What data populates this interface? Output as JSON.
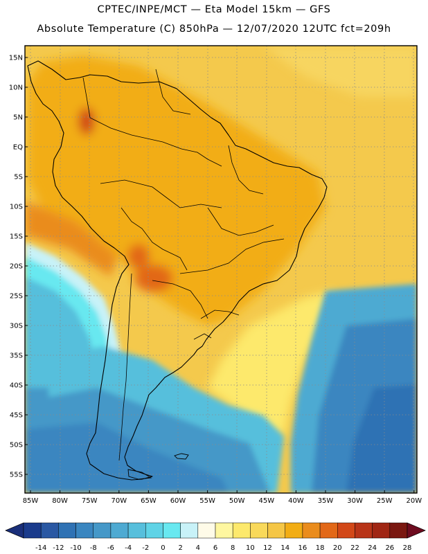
{
  "header": {
    "title_line1": "CPTEC/INPE/MCT —  Eta Model 15km — GFS",
    "title_line2": "Absolute Temperature (C) 850hPa — 12/07/2020 12UTC fct=209h"
  },
  "map": {
    "lat_labels": [
      "15N",
      "10N",
      "5N",
      "EQ",
      "5S",
      "10S",
      "15S",
      "20S",
      "25S",
      "30S",
      "35S",
      "40S",
      "45S",
      "50S",
      "55S"
    ],
    "lon_labels": [
      "85W",
      "80W",
      "75W",
      "70W",
      "65W",
      "60W",
      "55W",
      "50W",
      "45W",
      "40W",
      "35W",
      "30W",
      "25W",
      "20W"
    ],
    "grid": "dotted"
  },
  "colorbar": {
    "labels": [
      "-14",
      "-12",
      "-10",
      "-8",
      "-6",
      "-4",
      "-2",
      "0",
      "2",
      "4",
      "6",
      "8",
      "10",
      "12",
      "14",
      "16",
      "18",
      "20",
      "22",
      "24",
      "26",
      "28"
    ],
    "colors": [
      "#1a3b8c",
      "#2a58a3",
      "#2f72b4",
      "#3a86c0",
      "#4598c8",
      "#4eaad2",
      "#57bfdc",
      "#5fd3e6",
      "#68e8f0",
      "#c8f2f8",
      "#fffbe8",
      "#fff7a0",
      "#fde96c",
      "#f9d95a",
      "#f5c645",
      "#f2ad14",
      "#ea8c1c",
      "#e26818",
      "#d24818",
      "#b83418",
      "#a02614",
      "#7a1710"
    ],
    "under_color": "#1a2f7a",
    "over_color": "#6e0b1f"
  },
  "colors": {
    "ocean_warm": "#f4c94c",
    "land_warm": "#f2ad14",
    "cold_ocean": "#4cb8d4",
    "deep_cold": "#2e7fbf",
    "hot_spot": "#e26818"
  }
}
